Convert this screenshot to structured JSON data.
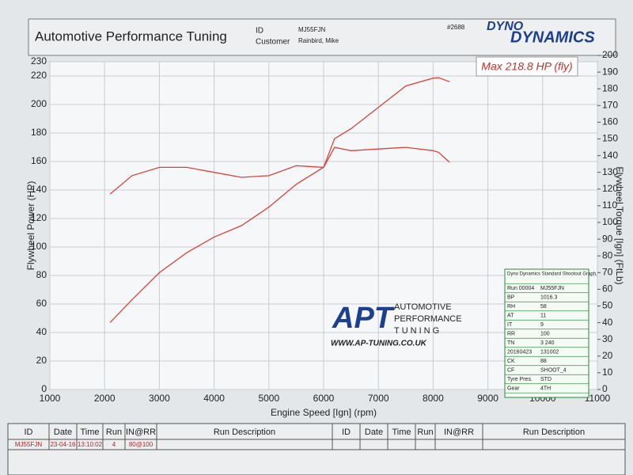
{
  "header": {
    "title": "Automotive Performance Tuning",
    "id_label": "ID",
    "id_value": "MJ55FJN",
    "customer_label": "Customer",
    "customer_value": "Rainbird, Mike",
    "sheet_no": "#2688",
    "logo_top": "DYNO",
    "logo_bottom": "DYNAMICS"
  },
  "chart_data": {
    "type": "line",
    "annotation": "Max 218.8 HP (fly)",
    "x_label": "Engine Speed [Ign] (rpm)",
    "y_label": "Flywheel Power (HP)",
    "y2_label": "Flywheel Torque [Ign] (FtLb)",
    "x": [
      2100,
      2500,
      3000,
      3500,
      4000,
      4500,
      5000,
      5500,
      6000,
      6200,
      6500,
      7000,
      7500,
      8000,
      8100,
      8300
    ],
    "series": [
      {
        "name": "Flywheel Power",
        "color": "#d8443a",
        "axis": "y",
        "values": [
          47,
          63,
          82,
          96,
          107,
          115,
          128,
          144,
          156,
          176,
          183,
          198,
          213,
          218.5,
          218.8,
          216
        ]
      },
      {
        "name": "Flywheel Torque",
        "color": "#d8443a",
        "axis": "y2",
        "values": [
          117,
          128,
          133,
          133,
          130,
          127,
          128,
          134,
          133,
          145,
          143,
          144,
          145,
          143,
          142,
          136
        ]
      }
    ],
    "xlim": [
      1000,
      11000
    ],
    "xticks": [
      1000,
      2000,
      3000,
      4000,
      5000,
      6000,
      7000,
      8000,
      9000,
      10000,
      11000
    ],
    "ylim": [
      0,
      230
    ],
    "yticks": [
      0,
      20,
      40,
      60,
      80,
      100,
      120,
      140,
      160,
      180,
      200,
      220,
      230
    ],
    "y2lim": [
      0,
      200
    ],
    "y2ticks": [
      0,
      10,
      20,
      30,
      40,
      50,
      60,
      70,
      80,
      90,
      100,
      110,
      120,
      130,
      140,
      150,
      160,
      170,
      180,
      190,
      200
    ],
    "grid": true
  },
  "logo": {
    "mark": "APT",
    "line1": "AUTOMOTIVE",
    "line2": "PERFORMANCE",
    "line3": "TUNING",
    "url": "WWW.AP-TUNING.CO.UK"
  },
  "info_table": {
    "title": "Dyno Dynamics Standard Shootout Graph.",
    "rows": [
      [
        "Run 00004",
        "MJ55FJN"
      ],
      [
        "BP",
        "1016.3"
      ],
      [
        "RH",
        "58"
      ],
      [
        "AT",
        "11"
      ],
      [
        "IT",
        "9"
      ],
      [
        "RR",
        "100"
      ],
      [
        "TN",
        "3 240"
      ],
      [
        "20160423",
        "131002"
      ],
      [
        "CK",
        "88"
      ],
      [
        "CF",
        "SHOOT_4"
      ],
      [
        "Tyre Pres.",
        "STD"
      ],
      [
        "Gear",
        "4TH"
      ]
    ]
  },
  "run_table": {
    "headers": [
      "ID",
      "Date",
      "Time",
      "Run",
      "IN@RR",
      "Run Description",
      "ID",
      "Date",
      "Time",
      "Run",
      "IN@RR",
      "Run Description"
    ],
    "rows": [
      [
        "MJ55FJN",
        "23-04-16",
        "13:10:02",
        "4",
        "80@100"
      ]
    ]
  }
}
